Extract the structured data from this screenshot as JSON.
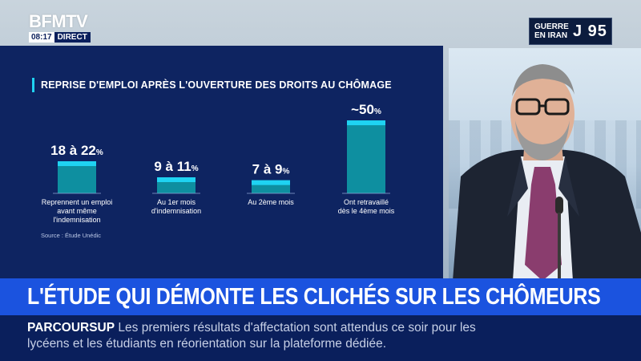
{
  "channel": {
    "name": "BFMTV",
    "time": "08:17",
    "live": "DIRECT"
  },
  "tag": {
    "line1": "GUERRE",
    "line2": "EN IRAN",
    "day": "J 95"
  },
  "chart_data": {
    "type": "bar",
    "title": "REPRISE D'EMPLOI APRÈS L'OUVERTURE DES DROITS AU CHÔMAGE",
    "source": "Source : Étude Unédic",
    "unit": "%",
    "accent_color": "#1fd3f2",
    "bar_color": "#0e8fa0",
    "ylim": [
      0,
      55
    ],
    "categories": [
      {
        "label_lines": [
          "Reprennent un emploi",
          "avant même",
          "l'indemnisation"
        ],
        "value_text": "18 à 22",
        "value": 22,
        "range": [
          18,
          22
        ]
      },
      {
        "label_lines": [
          "Au 1er mois",
          "d'indemnisation"
        ],
        "value_text": "9 à 11",
        "value": 11,
        "range": [
          9,
          11
        ]
      },
      {
        "label_lines": [
          "Au 2ème mois"
        ],
        "value_text": "7 à 9",
        "value": 9,
        "range": [
          7,
          9
        ]
      },
      {
        "label_lines": [
          "Ont retravaillé",
          "dès le 4ème mois"
        ],
        "value_text": "~50",
        "value": 50,
        "range": [
          50,
          50
        ]
      }
    ]
  },
  "headline": "L'ÉTUDE QUI DÉMONTE LES CLICHÉS SUR LES CHÔMEURS",
  "ticker": {
    "tag": "PARCOURSUP",
    "text": "Les premiers résultats d'affectation sont attendus ce soir pour les lycéens et les étudiants en réorientation sur la plateforme dédiée."
  }
}
